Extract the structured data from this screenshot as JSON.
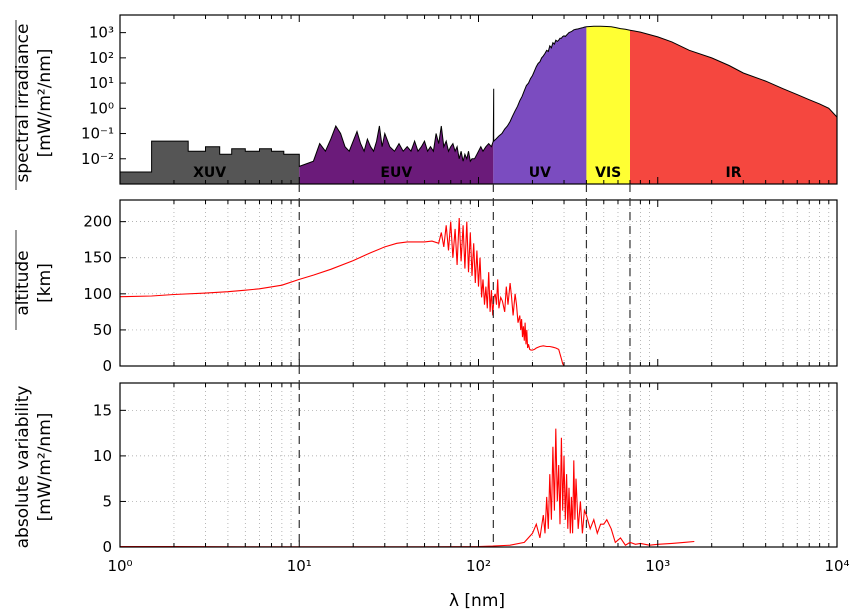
{
  "chart_data": [
    {
      "type": "area",
      "panel": "top",
      "ylabel_line1": "spectral irradiance",
      "ylabel_line2": "[mW/m²/nm]",
      "xscale": "log",
      "yscale": "log",
      "xlim": [
        1,
        10000
      ],
      "ylim": [
        0.001,
        5000
      ],
      "yticks": [
        "10⁻²",
        "10⁻¹",
        "10⁰",
        "10¹",
        "10²",
        "10³"
      ],
      "ytick_values": [
        0.01,
        0.1,
        1,
        10,
        100,
        1000
      ],
      "grid": false,
      "bands": [
        {
          "label": "XUV",
          "from": 1,
          "to": 10,
          "color": "#555555"
        },
        {
          "label": "EUV",
          "from": 10,
          "to": 121,
          "color": "#6b1b7a"
        },
        {
          "label": "UV",
          "from": 121,
          "to": 400,
          "color": "#7b4cc0"
        },
        {
          "label": "VIS",
          "from": 400,
          "to": 700,
          "color": "#ffff33"
        },
        {
          "label": "IR",
          "from": 700,
          "to": 10000,
          "color": "#f5473f"
        }
      ],
      "series": [
        {
          "x": [
            1,
            1.5,
            1.5,
            2.4,
            2.4,
            3.0,
            3.0,
            3.6,
            3.6,
            4.2,
            4.2,
            5.0,
            5.0,
            6.0,
            6.0,
            7.0,
            7.0,
            8.2,
            8.2,
            10,
            10,
            12,
            13,
            14,
            15,
            16,
            17,
            18,
            19,
            20,
            21,
            22,
            23,
            24,
            25,
            26,
            27,
            28,
            29,
            30,
            32,
            34,
            36,
            38,
            40,
            42,
            44,
            46,
            48,
            50,
            52,
            54,
            56,
            58,
            60,
            62,
            64,
            66,
            68,
            70,
            72,
            74,
            76,
            78,
            80,
            82,
            84,
            86,
            88,
            90,
            92,
            95,
            98,
            100,
            103,
            106,
            110,
            114,
            118,
            121,
            121.6,
            121.6,
            125,
            130,
            135,
            140,
            145,
            150,
            155,
            160,
            165,
            170,
            175,
            180,
            185,
            190,
            195,
            200,
            205,
            210,
            215,
            220,
            225,
            230,
            235,
            240,
            245,
            250,
            255,
            260,
            265,
            270,
            275,
            280,
            285,
            290,
            295,
            300,
            305,
            310,
            315,
            320,
            330,
            340,
            350,
            360,
            370,
            380,
            390,
            400,
            420,
            440,
            460,
            480,
            500,
            520,
            550,
            580,
            620,
            660,
            700,
            800,
            1000,
            1200,
            1500,
            2000,
            2500,
            3000,
            4000,
            5000,
            6000,
            7000,
            8000,
            9000,
            10000
          ],
          "y": [
            0.003,
            0.003,
            0.05,
            0.05,
            0.02,
            0.02,
            0.03,
            0.03,
            0.015,
            0.015,
            0.025,
            0.025,
            0.02,
            0.02,
            0.025,
            0.025,
            0.02,
            0.02,
            0.015,
            0.015,
            0.005,
            0.008,
            0.04,
            0.02,
            0.06,
            0.2,
            0.1,
            0.03,
            0.02,
            0.05,
            0.12,
            0.04,
            0.02,
            0.06,
            0.03,
            0.02,
            0.05,
            0.2,
            0.03,
            0.1,
            0.03,
            0.02,
            0.04,
            0.02,
            0.03,
            0.02,
            0.05,
            0.02,
            0.03,
            0.05,
            0.02,
            0.03,
            0.02,
            0.1,
            0.04,
            0.2,
            0.03,
            0.05,
            0.02,
            0.03,
            0.04,
            0.02,
            0.03,
            0.01,
            0.02,
            0.008,
            0.015,
            0.01,
            0.02,
            0.008,
            0.01,
            0.01,
            0.015,
            0.02,
            0.03,
            0.02,
            0.03,
            0.04,
            0.03,
            0.05,
            6,
            0.05,
            0.06,
            0.08,
            0.1,
            0.15,
            0.2,
            0.3,
            0.5,
            0.8,
            1.2,
            2,
            3,
            5,
            8,
            10,
            15,
            20,
            30,
            45,
            60,
            70,
            100,
            120,
            150,
            200,
            180,
            300,
            250,
            400,
            350,
            500,
            450,
            500,
            600,
            600,
            700,
            750,
            700,
            800,
            900,
            1000,
            1100,
            1300,
            1350,
            1400,
            1500,
            1550,
            1650,
            1700,
            1750,
            1800,
            1800,
            1780,
            1760,
            1750,
            1700,
            1600,
            1450,
            1350,
            1250,
            1050,
            680,
            430,
            200,
            100,
            50,
            25,
            12,
            6,
            3.5,
            2.2,
            1.5,
            1.0,
            0.45
          ]
        }
      ]
    },
    {
      "type": "line",
      "panel": "middle",
      "ylabel_line1": "altitude",
      "ylabel_line2": "[km]",
      "xscale": "log",
      "xlim": [
        1,
        10000
      ],
      "ylim": [
        0,
        230
      ],
      "yticks": [
        "0",
        "50",
        "100",
        "150",
        "200"
      ],
      "ytick_values": [
        0,
        50,
        100,
        150,
        200
      ],
      "grid": true,
      "series": [
        {
          "color": "#ff0000",
          "x": [
            1,
            1.5,
            2,
            3,
            4,
            5,
            6,
            8,
            10,
            12,
            15,
            20,
            25,
            30,
            35,
            40,
            45,
            50,
            55,
            60,
            62,
            64,
            66,
            68,
            70,
            72,
            74,
            76,
            78,
            80,
            82,
            84,
            86,
            88,
            90,
            92,
            94,
            96,
            98,
            100,
            102,
            104,
            106,
            108,
            110,
            112,
            114,
            116,
            118,
            120,
            122,
            124,
            126,
            128,
            130,
            133,
            136,
            140,
            143,
            146,
            150,
            153,
            156,
            160,
            163,
            166,
            170,
            172,
            174,
            176,
            178,
            180,
            182,
            184,
            186,
            188,
            190,
            193,
            196,
            200,
            205,
            210,
            220,
            230,
            240,
            250,
            260,
            270,
            280,
            290,
            295,
            300,
            350,
            400,
            500,
            600
          ],
          "y": [
            96,
            97,
            99,
            101,
            103,
            105,
            107,
            112,
            120,
            126,
            134,
            146,
            157,
            165,
            170,
            172,
            172,
            172,
            173,
            170,
            185,
            165,
            195,
            160,
            200,
            150,
            190,
            140,
            205,
            145,
            195,
            135,
            200,
            130,
            185,
            125,
            170,
            115,
            160,
            110,
            150,
            95,
            120,
            85,
            110,
            80,
            130,
            75,
            105,
            70,
            95,
            100,
            85,
            120,
            80,
            95,
            90,
            75,
            110,
            85,
            115,
            95,
            70,
            100,
            85,
            60,
            70,
            50,
            65,
            40,
            55,
            35,
            60,
            30,
            50,
            25,
            30,
            23,
            22,
            22,
            23,
            25,
            27,
            28,
            27,
            27,
            26,
            25,
            23,
            10,
            3,
            0,
            0,
            0,
            0,
            0
          ]
        }
      ]
    },
    {
      "type": "line",
      "panel": "bottom",
      "ylabel_line1": "absolute variability",
      "ylabel_line2": "[mW/m²/nm]",
      "xlabel": "λ [nm]",
      "xscale": "log",
      "xlim": [
        1,
        10000
      ],
      "ylim": [
        0,
        18
      ],
      "xticks": [
        "10⁰",
        "10¹",
        "10²",
        "10³",
        "10⁴"
      ],
      "xtick_values": [
        1,
        10,
        100,
        1000,
        10000
      ],
      "yticks": [
        "0",
        "5",
        "10",
        "15"
      ],
      "ytick_values": [
        0,
        5,
        10,
        15
      ],
      "grid": true,
      "series": [
        {
          "color": "#ff0000",
          "x": [
            1,
            2,
            5,
            10,
            20,
            50,
            100,
            120,
            150,
            180,
            200,
            210,
            220,
            230,
            235,
            240,
            245,
            250,
            255,
            260,
            265,
            270,
            275,
            280,
            285,
            290,
            295,
            300,
            305,
            310,
            315,
            320,
            325,
            330,
            335,
            340,
            345,
            350,
            360,
            370,
            380,
            390,
            400,
            420,
            440,
            460,
            480,
            500,
            520,
            550,
            580,
            620,
            660,
            700,
            750,
            800,
            900,
            1000,
            1200,
            1400,
            1600
          ],
          "y": [
            0.05,
            0.05,
            0.02,
            0.02,
            0.02,
            0.02,
            0.05,
            0.1,
            0.2,
            0.5,
            1.5,
            2.5,
            1.0,
            3.5,
            1.5,
            5.5,
            2.0,
            8.0,
            3.0,
            11.0,
            4.0,
            13.0,
            5.0,
            9.0,
            2.5,
            12.0,
            4.0,
            10.0,
            3.0,
            8.0,
            2.0,
            6.5,
            1.5,
            5.5,
            1.5,
            9.5,
            3.0,
            7.5,
            2.0,
            5.0,
            1.5,
            4.0,
            3.5,
            2.0,
            3.0,
            1.5,
            2.5,
            2.5,
            3.0,
            2.0,
            0.5,
            1.0,
            0.2,
            0.5,
            0.3,
            0.4,
            0.2,
            0.3,
            0.4,
            0.5,
            0.6
          ]
        }
      ]
    }
  ]
}
